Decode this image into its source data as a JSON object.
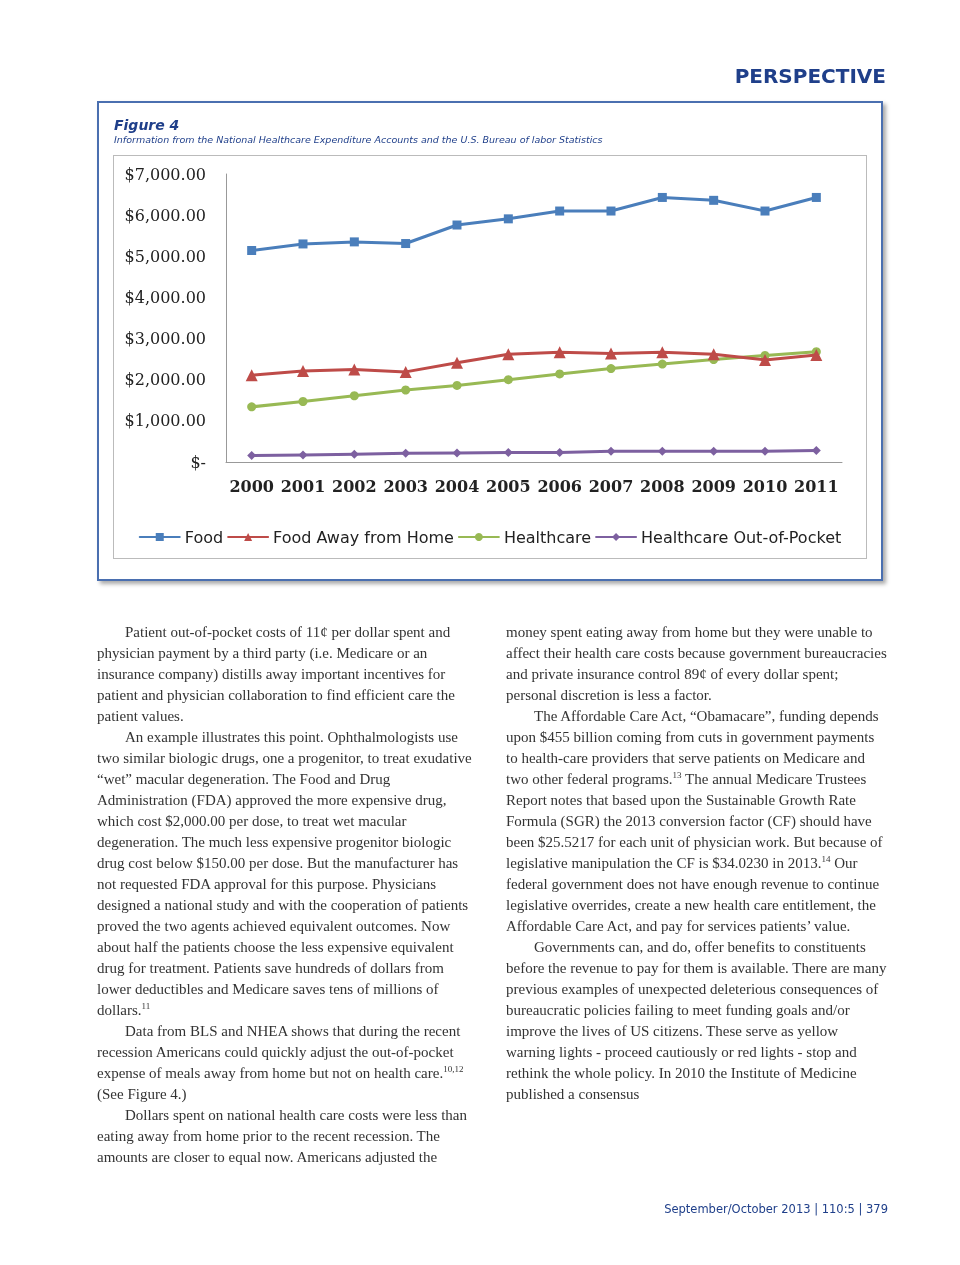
{
  "chart_data": {
    "type": "line",
    "title": "Figure 4",
    "subtitle": "Information from the National Healthcare Expenditure Accounts and the U.S. Bureau of labor Statistics",
    "categories": [
      "2000",
      "2001",
      "2002",
      "2003",
      "2004",
      "2005",
      "2006",
      "2007",
      "2008",
      "2009",
      "2010",
      "2011"
    ],
    "series": [
      {
        "name": "Food",
        "color": "#4a7ebb",
        "marker": "square",
        "values": [
          5140,
          5300,
          5350,
          5310,
          5760,
          5910,
          6100,
          6100,
          6430,
          6360,
          6100,
          6430
        ]
      },
      {
        "name": "Food Away from Home",
        "color": "#be4b48",
        "marker": "triangle",
        "values": [
          2110,
          2210,
          2250,
          2190,
          2410,
          2620,
          2670,
          2640,
          2670,
          2620,
          2480,
          2600
        ]
      },
      {
        "name": "Healthcare",
        "color": "#98b954",
        "marker": "circle",
        "values": [
          1340,
          1470,
          1610,
          1750,
          1860,
          2000,
          2140,
          2270,
          2380,
          2490,
          2590,
          2680
        ]
      },
      {
        "name": "Healthcare Out-of-Pocket",
        "color": "#7d60a0",
        "marker": "diamond",
        "values": [
          160,
          170,
          190,
          210,
          220,
          230,
          230,
          260,
          260,
          260,
          260,
          280
        ]
      }
    ],
    "ylim": [
      0,
      7000
    ],
    "yticks": [
      {
        "value": 0,
        "label": "$-"
      },
      {
        "value": 1000,
        "label": "$1,000.00"
      },
      {
        "value": 2000,
        "label": "$2,000.00"
      },
      {
        "value": 3000,
        "label": "$3,000.00"
      },
      {
        "value": 4000,
        "label": "$4,000.00"
      },
      {
        "value": 5000,
        "label": "$5,000.00"
      },
      {
        "value": 6000,
        "label": "$6,000.00"
      },
      {
        "value": 7000,
        "label": "$7,000.00"
      }
    ],
    "grid": false,
    "legend": "bottom",
    "line_style": "solid",
    "annotations": [
      "PERSPECTIVE",
      "Patient out-of-pocket costs of 11¢ per dollar spent and physician payment by a third party (i.e. Medicare or an insurance company) distills away important incentives for patient and physician collaboration to find efficient care the patient values.",
      "An example illustrates this point.  Ophthalmologists use two similar biologic drugs, one a progenitor, to treat exudative “wet” macular degeneration.  The Food and Drug Administration (FDA) approved the more expensive drug, which cost $2,000.00 per dose, to treat wet macular degeneration.  The much less expensive  progenitor biologic drug cost below $150.00 per dose.  But the manufacturer has not requested FDA approval for this purpose.  Physicians designed a national study and with the cooperation of patients proved the two agents achieved equivalent outcomes.  Now about half the patients choose the less expensive equivalent drug for treatment.  Patients save hundreds of dollars from lower deductibles and Medicare saves tens  of millions of dollars.$^{11}$",
      "Data from BLS and NHEA shows that during the recent recession Americans could quickly adjust the out-of-pocket expense of meals away from home but not on health care.$^{10,12}$  (See Figure 4.)",
      "Dollars spent on national health care costs were less than eating away from home prior to the recent recession. The amounts are closer to equal now.  Americans adjusted the money spent eating away from home but they were unable to affect their health care costs because government bureaucracies and private insurance control 89¢ of every dollar spent; personal discretion is less a factor.",
      "The Affordable Care Act, “Obamacare”, funding depends upon $455 billion coming from cuts in government payments to health-care providers that serve patients on Medicare and two other federal programs.$^{13}$ The annual Medicare Trustees Report notes that based upon the Sustainable Growth Rate Formula (SGR) the 2013 conversion factor (CF) should have been $25.5217 for each unit of physician work.  But because of legislative manipulation the CF is $34.0230 in 2013.$^{14}$  Our federal government does not have enough revenue to continue legislative overrides, create a new health care entitlement, the Affordable Care Act, and pay for services patients’ value.",
      "Governments can, and do, offer benefits to constituents before the revenue to pay for them is available.  There are many previous examples of unexpected deleterious consequences of bureaucratic policies failing to meet funding goals and/or improve the lives of US citizens.  These serve as yellow warning lights - proceed cautiously or red lights - stop and rethink the whole policy.  In 2010 the Institute of Medicine published a consensus",
      "September/October 2013 | 110:5 | 379"
    ]
  }
}
